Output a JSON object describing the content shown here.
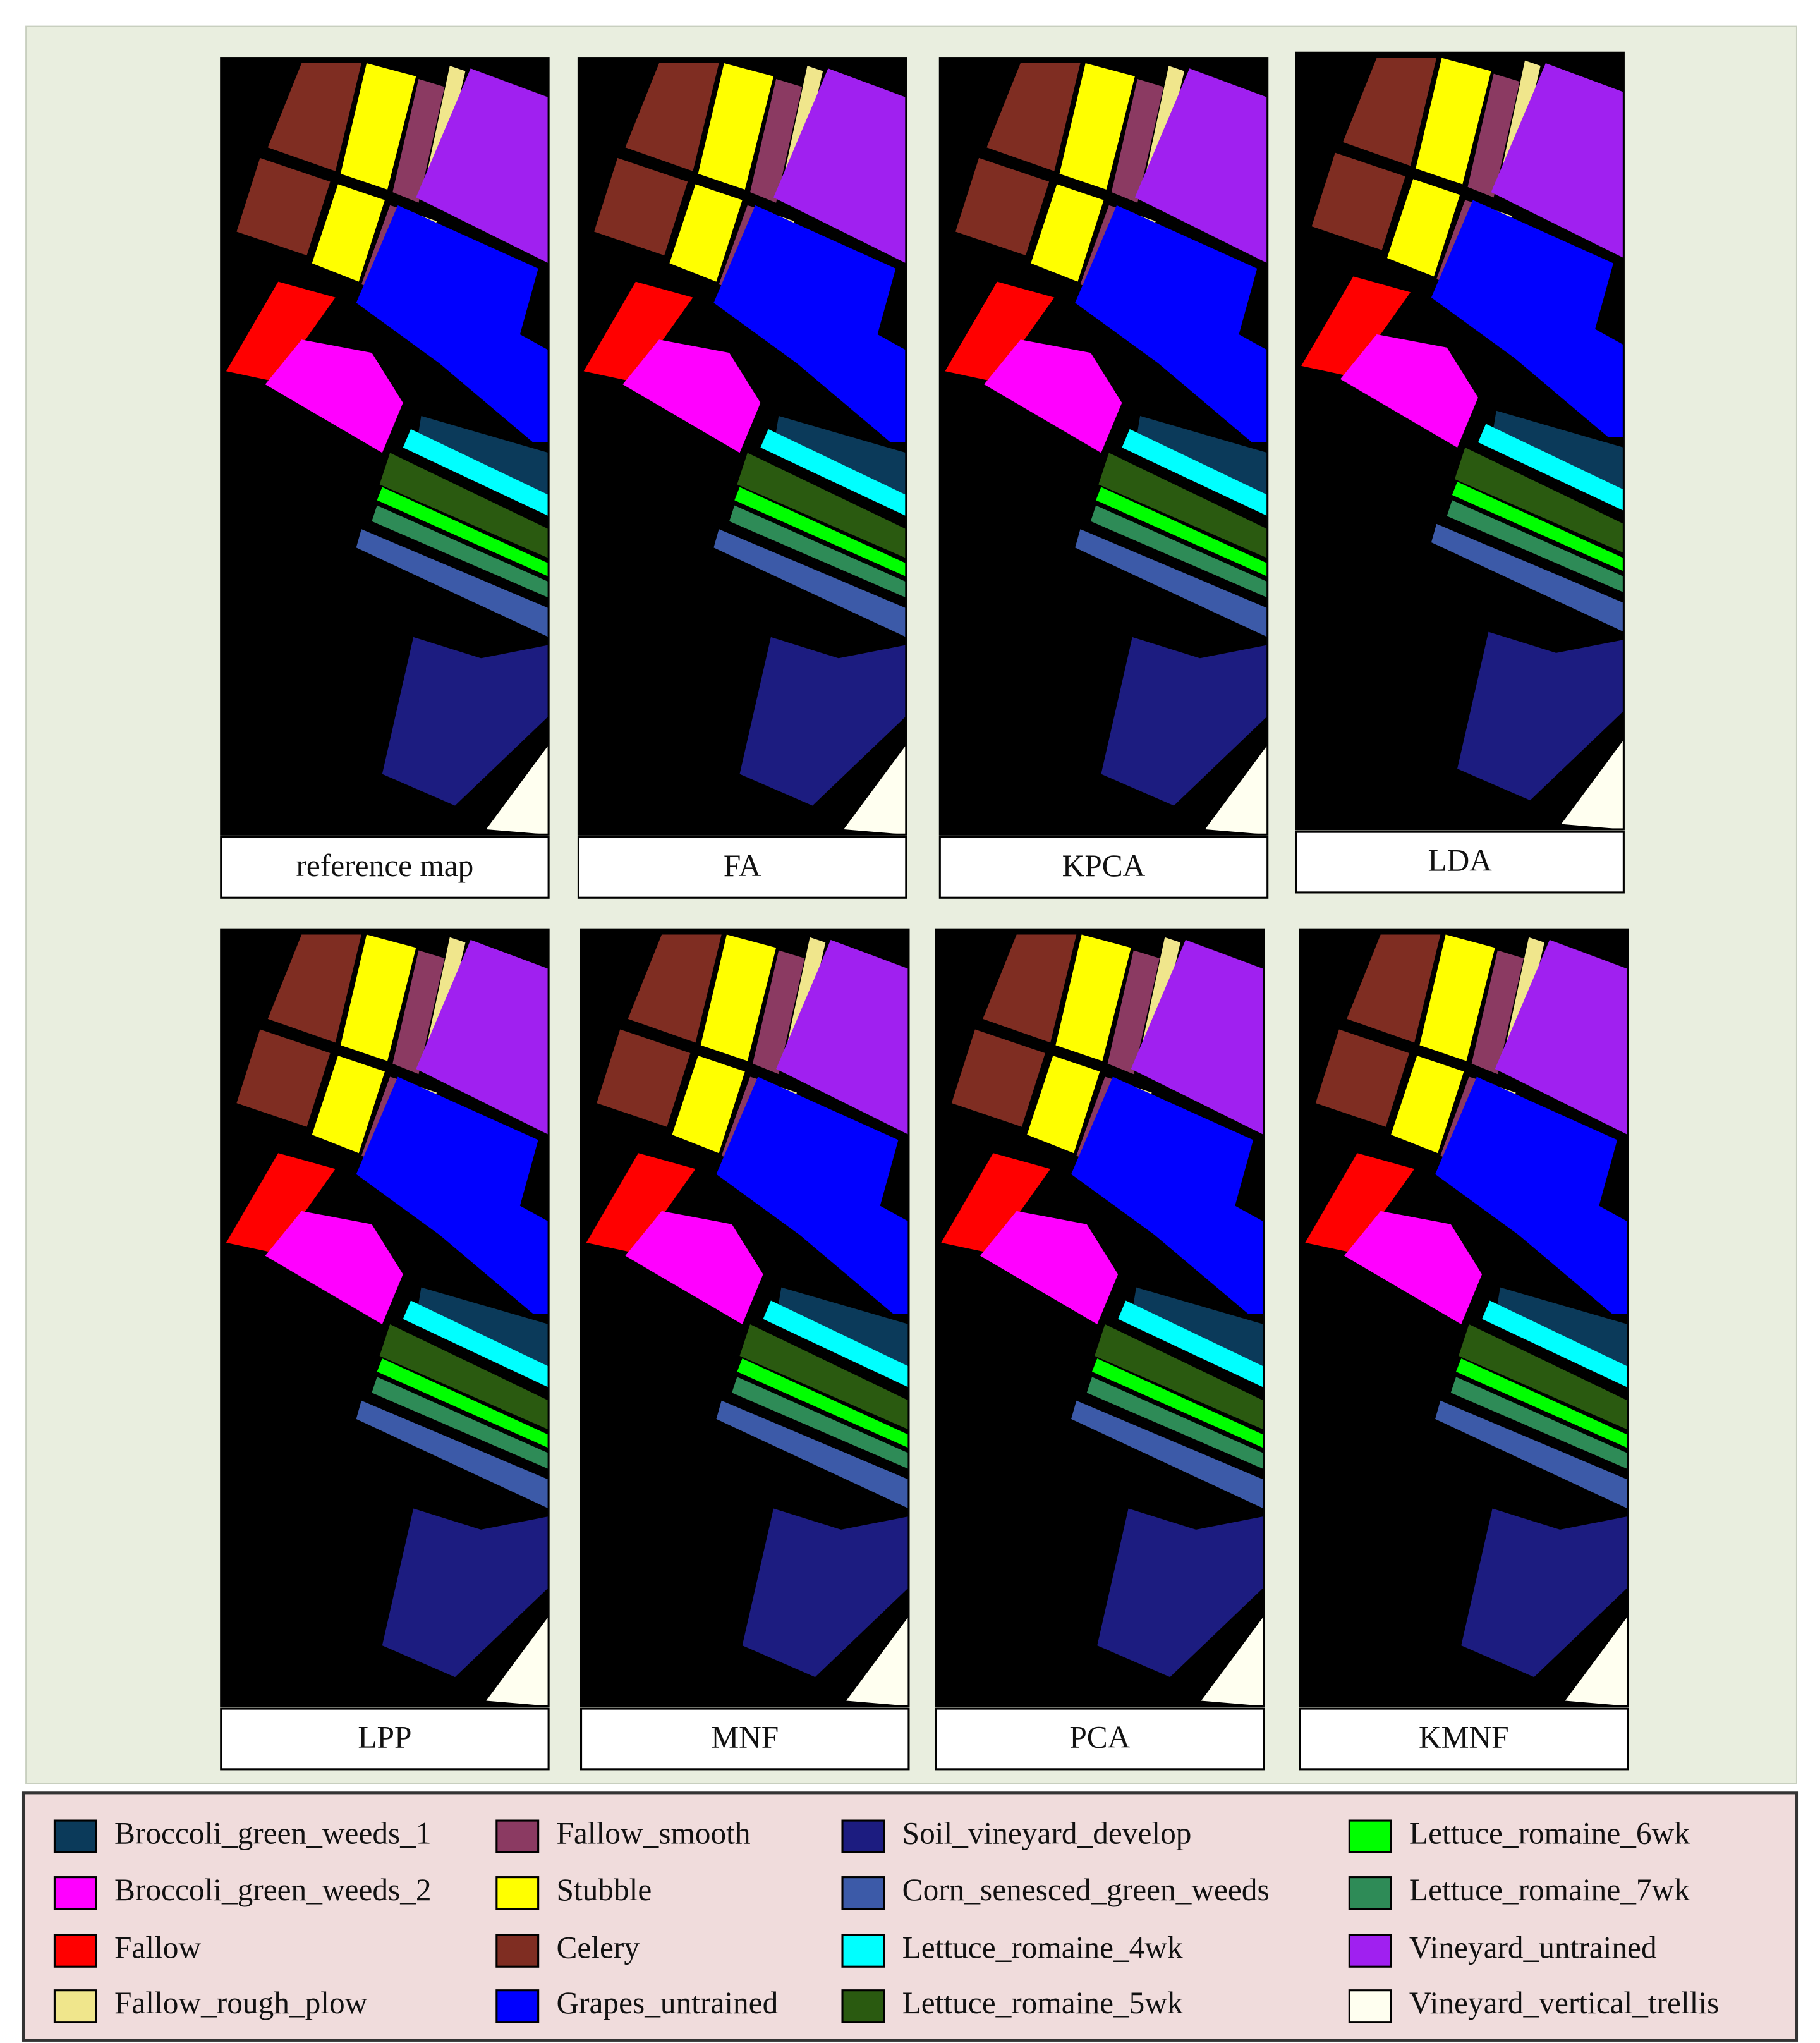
{
  "panels": [
    {
      "caption": "reference map"
    },
    {
      "caption": "FA"
    },
    {
      "caption": "KPCA"
    },
    {
      "caption": "LDA"
    },
    {
      "caption": "LPP"
    },
    {
      "caption": "MNF"
    },
    {
      "caption": "PCA"
    },
    {
      "caption": "KMNF"
    }
  ],
  "legend": [
    {
      "label": "Broccoli_green_weeds_1",
      "color": "#0b3a5a"
    },
    {
      "label": "Broccoli_green_weeds_2",
      "color": "#ff00ff"
    },
    {
      "label": "Fallow",
      "color": "#ff0000"
    },
    {
      "label": "Fallow_rough_plow",
      "color": "#f0e68c"
    },
    {
      "label": "Fallow_smooth",
      "color": "#8b3a62"
    },
    {
      "label": "Stubble",
      "color": "#ffff00"
    },
    {
      "label": "Celery",
      "color": "#7f2d22"
    },
    {
      "label": "Grapes_untrained",
      "color": "#0000ff"
    },
    {
      "label": "Soil_vineyard_develop",
      "color": "#1c1c80"
    },
    {
      "label": "Corn_senesced_green_weeds",
      "color": "#3c5aa8"
    },
    {
      "label": "Lettuce_romaine_4wk",
      "color": "#00ffff"
    },
    {
      "label": "Lettuce_romaine_5wk",
      "color": "#2a5a10"
    },
    {
      "label": "Lettuce_romaine_6wk",
      "color": "#00ff00"
    },
    {
      "label": "Lettuce_romaine_7wk",
      "color": "#2e8b57"
    },
    {
      "label": "Vineyard_untrained",
      "color": "#a020f0"
    },
    {
      "label": "Vineyard_vertical_trellis",
      "color": "#fffff0"
    }
  ]
}
